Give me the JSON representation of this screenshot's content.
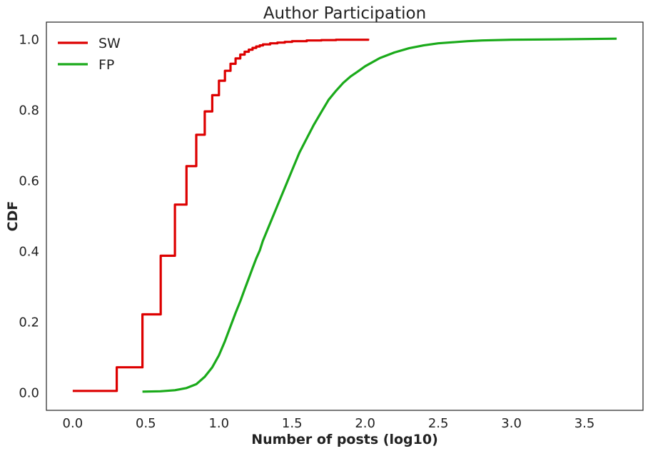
{
  "chart_data": {
    "type": "line",
    "title": "Author Participation",
    "xlabel": "Number of posts (log10)",
    "ylabel": "CDF",
    "xlim": [
      -0.18,
      3.9
    ],
    "ylim": [
      -0.05,
      1.05
    ],
    "xticks": [
      0.0,
      0.5,
      1.0,
      1.5,
      2.0,
      2.5,
      3.0,
      3.5
    ],
    "xtick_labels": [
      "0.0",
      "0.5",
      "1.0",
      "1.5",
      "2.0",
      "2.5",
      "3.0",
      "3.5"
    ],
    "yticks": [
      0.0,
      0.2,
      0.4,
      0.6,
      0.8,
      1.0
    ],
    "ytick_labels": [
      "0.0",
      "0.2",
      "0.4",
      "0.6",
      "0.8",
      "1.0"
    ],
    "grid": false,
    "legend_position": "top-left",
    "series": [
      {
        "name": "SW",
        "color": "#dd0000",
        "step": true,
        "points": [
          [
            0.0,
            0.005
          ],
          [
            0.301,
            0.072
          ],
          [
            0.477,
            0.222
          ],
          [
            0.602,
            0.388
          ],
          [
            0.699,
            0.533
          ],
          [
            0.778,
            0.642
          ],
          [
            0.845,
            0.731
          ],
          [
            0.903,
            0.797
          ],
          [
            0.954,
            0.843
          ],
          [
            1.0,
            0.884
          ],
          [
            1.041,
            0.912
          ],
          [
            1.079,
            0.932
          ],
          [
            1.114,
            0.947
          ],
          [
            1.146,
            0.958
          ],
          [
            1.176,
            0.966
          ],
          [
            1.204,
            0.972
          ],
          [
            1.23,
            0.977
          ],
          [
            1.255,
            0.981
          ],
          [
            1.279,
            0.984
          ],
          [
            1.301,
            0.987
          ],
          [
            1.35,
            0.99
          ],
          [
            1.4,
            0.992
          ],
          [
            1.45,
            0.994
          ],
          [
            1.5,
            0.996
          ],
          [
            1.6,
            0.998
          ],
          [
            1.7,
            0.999
          ],
          [
            1.8,
            1.0
          ],
          [
            2.02,
            1.003
          ]
        ]
      },
      {
        "name": "FP",
        "color": "#1aaa1a",
        "step": false,
        "points": [
          [
            0.477,
            0.003
          ],
          [
            0.6,
            0.004
          ],
          [
            0.699,
            0.007
          ],
          [
            0.778,
            0.013
          ],
          [
            0.845,
            0.024
          ],
          [
            0.903,
            0.045
          ],
          [
            0.954,
            0.072
          ],
          [
            1.0,
            0.106
          ],
          [
            1.041,
            0.146
          ],
          [
            1.079,
            0.188
          ],
          [
            1.114,
            0.226
          ],
          [
            1.146,
            0.259
          ],
          [
            1.176,
            0.293
          ],
          [
            1.204,
            0.324
          ],
          [
            1.23,
            0.353
          ],
          [
            1.255,
            0.38
          ],
          [
            1.279,
            0.403
          ],
          [
            1.3,
            0.43
          ],
          [
            1.35,
            0.48
          ],
          [
            1.4,
            0.53
          ],
          [
            1.45,
            0.58
          ],
          [
            1.5,
            0.63
          ],
          [
            1.55,
            0.68
          ],
          [
            1.6,
            0.72
          ],
          [
            1.65,
            0.76
          ],
          [
            1.7,
            0.795
          ],
          [
            1.75,
            0.83
          ],
          [
            1.8,
            0.855
          ],
          [
            1.85,
            0.878
          ],
          [
            1.9,
            0.896
          ],
          [
            1.95,
            0.91
          ],
          [
            2.0,
            0.925
          ],
          [
            2.1,
            0.948
          ],
          [
            2.2,
            0.964
          ],
          [
            2.3,
            0.976
          ],
          [
            2.4,
            0.984
          ],
          [
            2.5,
            0.99
          ],
          [
            2.6,
            0.993
          ],
          [
            2.7,
            0.996
          ],
          [
            2.8,
            0.998
          ],
          [
            3.0,
            1.0
          ],
          [
            3.3,
            1.001
          ],
          [
            3.72,
            1.003
          ]
        ]
      }
    ]
  }
}
